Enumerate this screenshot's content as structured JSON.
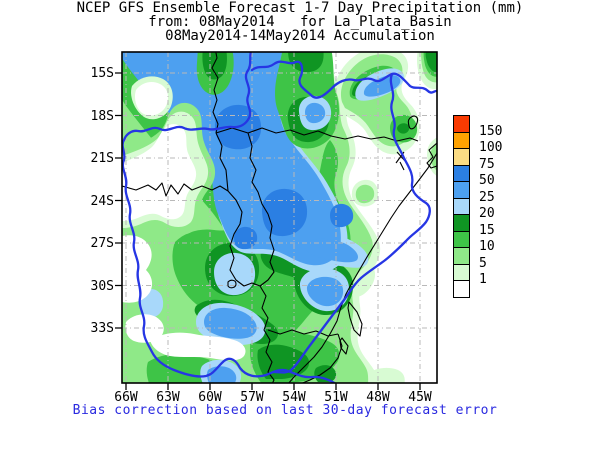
{
  "title": {
    "line1": "NCEP GFS Ensemble Forecast 1-7 Day Precipitation (mm)",
    "line2": "from: 08May2014   for La_Plata_Basin",
    "line3": "08May2014-14May2014 Accumulation"
  },
  "caption": {
    "text": "Bias correction based on last 30-day forecast error",
    "color": "#2a2ae0"
  },
  "axes": {
    "x_labels": [
      "66W",
      "63W",
      "60W",
      "57W",
      "54W",
      "51W",
      "48W",
      "45W"
    ],
    "y_labels": [
      "15S",
      "18S",
      "21S",
      "24S",
      "27S",
      "30S",
      "33S"
    ]
  },
  "legend": {
    "labels": [
      "150",
      "100",
      "75",
      "50",
      "25",
      "20",
      "15",
      "10",
      "5",
      "1"
    ],
    "colors": [
      "#f93b02",
      "#ffa201",
      "#fbdc84",
      "#2b7fe3",
      "#4da0f0",
      "#a8d8fa",
      "#0f9523",
      "#3ec447",
      "#8fe988",
      "#d8fbd3",
      "#ffffff"
    ]
  },
  "map_colors": {
    "pale_green": "#d8fbd3",
    "light_green": "#8fe988",
    "medium_green": "#3ec447",
    "dark_green": "#0f9523",
    "light_blue": "#a8d8fa",
    "medium_blue": "#4da0f0",
    "dark_blue": "#2b7fe3",
    "grid": "#b9b9b9",
    "border": "#000000",
    "basin_line": "#2636e4"
  }
}
